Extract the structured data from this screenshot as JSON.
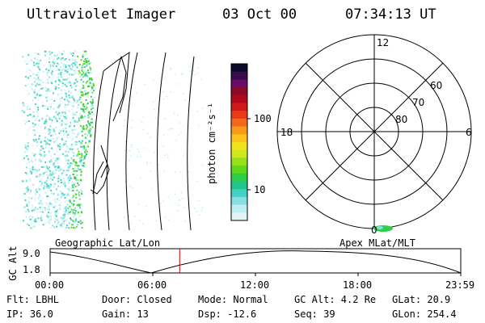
{
  "header": {
    "instrument": "Ultraviolet Imager",
    "date": "03 Oct 00",
    "time": "07:34:13 UT"
  },
  "colorbar": {
    "unit_label": "photon cm⁻²s⁻¹",
    "ticks": [
      "100",
      "10"
    ],
    "colors": [
      "#0a0a2a",
      "#3a0a4a",
      "#6a0a6a",
      "#8a0a2a",
      "#b00a1a",
      "#d01a1a",
      "#ea3a1a",
      "#f06a1a",
      "#f79a1a",
      "#fbc21a",
      "#f2e21a",
      "#cfe81a",
      "#96e01a",
      "#5ed81a",
      "#2ece4a",
      "#20c68a",
      "#40d2c2",
      "#86e0e2",
      "#bfeef2",
      "#e2f4f6"
    ]
  },
  "polar": {
    "hour_labels": {
      "top": "12",
      "left": "18",
      "right": "6",
      "bottom": "0"
    },
    "lat_labels": [
      "60",
      "70",
      "80"
    ]
  },
  "timeline": {
    "y_axis_title": "GC Alt",
    "y_ticks": [
      "9.0",
      "1.8"
    ],
    "left_title": "Geographic Lat/Lon",
    "right_title": "Apex MLat/MLT",
    "x_ticks": [
      "00:00",
      "06:00",
      "12:00",
      "18:00",
      "23:59"
    ],
    "current_time_fraction": 0.3155
  },
  "info": {
    "row1": {
      "filter": "Flt: LBHL",
      "door": "Door: Closed",
      "mode": "Mode: Normal",
      "gc_alt": "GC Alt: 4.2 Re",
      "glat": "GLat:  20.9"
    },
    "row2": {
      "ip": "IP: 36.0",
      "gain": "Gain: 13",
      "dsp": "Dsp:  -12.6",
      "seq": "Seq: 39",
      "glon": "GLon: 254.4"
    }
  }
}
